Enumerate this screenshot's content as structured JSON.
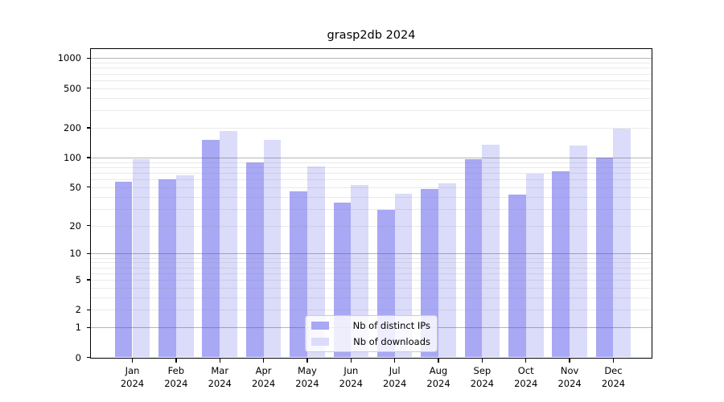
{
  "chart_data": {
    "type": "bar",
    "title": "grasp2db 2024",
    "categories": [
      {
        "month": "Jan",
        "year": "2024"
      },
      {
        "month": "Feb",
        "year": "2024"
      },
      {
        "month": "Mar",
        "year": "2024"
      },
      {
        "month": "Apr",
        "year": "2024"
      },
      {
        "month": "May",
        "year": "2024"
      },
      {
        "month": "Jun",
        "year": "2024"
      },
      {
        "month": "Jul",
        "year": "2024"
      },
      {
        "month": "Aug",
        "year": "2024"
      },
      {
        "month": "Sep",
        "year": "2024"
      },
      {
        "month": "Oct",
        "year": "2024"
      },
      {
        "month": "Nov",
        "year": "2024"
      },
      {
        "month": "Dec",
        "year": "2024"
      }
    ],
    "series": [
      {
        "name": "Nb of distinct IPs",
        "color": "#a8a8f4",
        "values": [
          57,
          60,
          152,
          90,
          45,
          35,
          29,
          48,
          96,
          42,
          73,
          100
        ]
      },
      {
        "name": "Nb of downloads",
        "color": "#dbdbfa",
        "values": [
          97,
          66,
          186,
          151,
          82,
          53,
          43,
          55,
          136,
          69,
          133,
          197
        ]
      }
    ],
    "yscale": "log1p",
    "ylim": [
      0,
      1238
    ],
    "y_ticks": [
      0,
      1,
      2,
      5,
      10,
      20,
      50,
      100,
      200,
      500,
      1000
    ],
    "grid": {
      "major": [
        1,
        10,
        100,
        1000
      ],
      "minor": [
        2,
        3,
        4,
        5,
        6,
        7,
        8,
        9,
        20,
        30,
        40,
        50,
        60,
        70,
        80,
        90,
        200,
        300,
        400,
        500,
        600,
        700,
        800,
        900
      ]
    },
    "legend_position": "lower center",
    "axes_frame_color": "#000000"
  }
}
